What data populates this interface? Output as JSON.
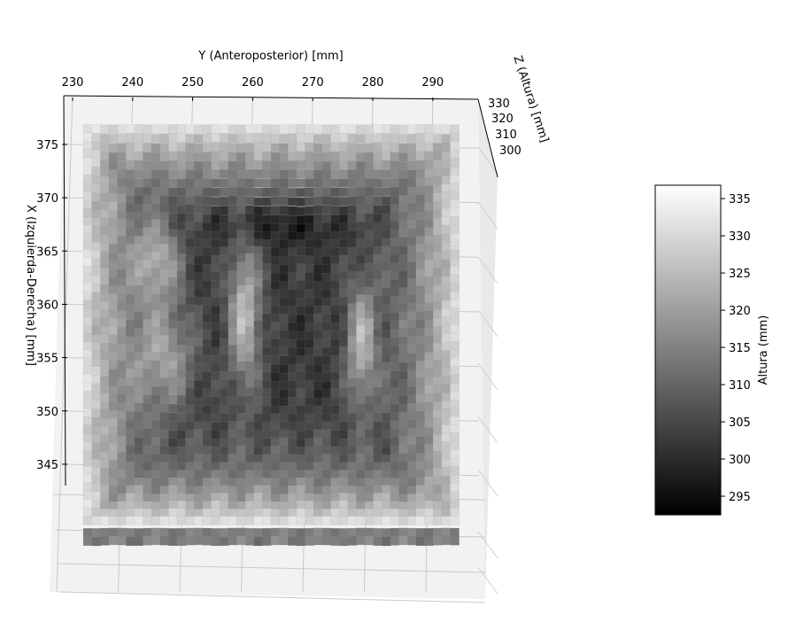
{
  "chart_data": {
    "type": "surface",
    "x_axis": {
      "label": "Y (Anteroposterior) [mm]",
      "ticks": [
        230,
        240,
        250,
        260,
        270,
        280,
        290
      ],
      "range": [
        228,
        296
      ]
    },
    "y_axis": {
      "label": "X (Izquierda-Derecha) [mm]",
      "ticks": [
        375,
        370,
        365,
        360,
        355,
        350,
        345
      ],
      "range": [
        341,
        379
      ]
    },
    "z_axis": {
      "label": "Z (Altura) [mm]",
      "ticks": [
        330,
        320,
        310,
        300
      ],
      "range": [
        292,
        337
      ]
    },
    "colorbar": {
      "label": "Altura (mm)",
      "ticks": [
        335,
        330,
        325,
        320,
        315,
        310,
        305,
        300,
        295
      ],
      "range": [
        292.5,
        336.8
      ],
      "colormap": "gray"
    },
    "grid": true,
    "surface_description": "Ring-shaped height map: high rim (~330-336 mm) around the border, deep central basin (~293-300 mm) with raised ridges at Y≈253-258 and Y≈272-280"
  }
}
